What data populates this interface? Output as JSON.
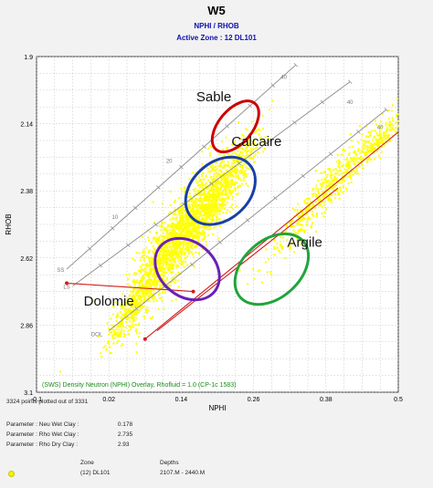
{
  "header": {
    "title": "W5",
    "subtitle": "NPHI / RHOB",
    "zone": "Active Zone : 12 DL101"
  },
  "chart_data": {
    "type": "scatter",
    "xlabel": "NPHI",
    "ylabel": "RHOB",
    "xlim": [
      -0.1,
      0.5
    ],
    "ylim": [
      3.1,
      1.9
    ],
    "x_ticks": [
      "-0.1",
      "0.02",
      "0.14",
      "0.26",
      "0.38",
      "0.5"
    ],
    "y_ticks": [
      "1.9",
      "2.14",
      "2.38",
      "2.62",
      "2.86",
      "3.1"
    ],
    "grid": true,
    "points_color": "#ffff00",
    "overlay_caption": "(SWS) Density Neutron (NPHI) Overlay, Rhofluid = 1.0 (CP-1c 1583)",
    "points_plotted_note": "3324 points plotted out of 3331",
    "lithology_lines": [
      {
        "label": "SS",
        "start": [
          -0.05,
          2.66
        ],
        "end": [
          0.33,
          1.93
        ]
      },
      {
        "label": "LS",
        "start": [
          -0.04,
          2.72
        ],
        "end": [
          0.42,
          1.99
        ]
      },
      {
        "label": "DOL",
        "start": [
          0.02,
          2.88
        ],
        "end": [
          0.48,
          2.09
        ]
      }
    ],
    "line_tick_labels": [
      {
        "text": "10",
        "x": 0.03,
        "y": 2.48
      },
      {
        "text": "20",
        "x": 0.12,
        "y": 2.28
      },
      {
        "text": "40",
        "x": 0.31,
        "y": 1.98
      },
      {
        "text": "40",
        "x": 0.42,
        "y": 2.07
      },
      {
        "text": "40",
        "x": 0.47,
        "y": 2.16
      },
      {
        "text": "SS",
        "x": -0.06,
        "y": 2.67
      },
      {
        "text": "LS",
        "x": -0.05,
        "y": 2.73
      },
      {
        "text": "DOL",
        "x": 0.0,
        "y": 2.9
      }
    ],
    "annotations": [
      {
        "text": "Sable",
        "color": "#cc0000",
        "label_pos": [
          0.194,
          2.06
        ],
        "center": [
          0.23,
          2.15
        ],
        "rx": 0.05,
        "ry": 0.1,
        "rotation": -50
      },
      {
        "text": "Calcaire",
        "color": "#1a3fa8",
        "label_pos": [
          0.265,
          2.22
        ],
        "center": [
          0.205,
          2.38
        ],
        "rx": 0.065,
        "ry": 0.17,
        "rotation": -42
      },
      {
        "text": "Argile",
        "color": "#1fa53a",
        "label_pos": [
          0.345,
          2.58
        ],
        "center": [
          0.29,
          2.66
        ],
        "rx": 0.07,
        "ry": 0.17,
        "rotation": -42
      },
      {
        "text": "Dolomie",
        "color": "#6a1fb8",
        "label_pos": [
          0.02,
          2.79
        ],
        "center": [
          0.15,
          2.66
        ],
        "rx": 0.045,
        "ry": 0.21,
        "rotation": -50
      }
    ],
    "red_lines": [
      {
        "from": [
          -0.05,
          2.71
        ],
        "to": [
          0.16,
          2.74
        ]
      },
      {
        "from": [
          0.08,
          2.91
        ],
        "to": [
          0.5,
          2.17
        ]
      },
      {
        "from": [
          0.1,
          2.88
        ],
        "to": [
          0.4,
          2.37
        ]
      }
    ],
    "clusters": [
      {
        "cx": 0.13,
        "cy": 2.56,
        "sx": 0.07,
        "sy": 0.12,
        "n": 1600,
        "rot": -0.95
      },
      {
        "cx": 0.2,
        "cy": 2.4,
        "sx": 0.05,
        "sy": 0.09,
        "n": 800,
        "rot": -0.9
      },
      {
        "cx": 0.38,
        "cy": 2.38,
        "sx": 0.06,
        "sy": 0.08,
        "n": 500,
        "rot": -0.7
      },
      {
        "cx": 0.47,
        "cy": 2.2,
        "sx": 0.02,
        "sy": 0.05,
        "n": 150,
        "rot": -0.6
      },
      {
        "cx": 0.06,
        "cy": 2.8,
        "sx": 0.04,
        "sy": 0.06,
        "n": 300,
        "rot": -0.9
      }
    ]
  },
  "footer": {
    "parameters": [
      {
        "name": "Parameter : Neu Wet Clay :",
        "value": "0.178"
      },
      {
        "name": "Parameter : Rho Wet Clay :",
        "value": "2.735"
      },
      {
        "name": "Parameter : Rho Dry Clay :",
        "value": "2.93"
      }
    ],
    "legend": {
      "zone_header": "Zone",
      "depth_header": "Depths",
      "zone": "(12) DL101",
      "depths": "2107.M - 2440.M"
    }
  }
}
